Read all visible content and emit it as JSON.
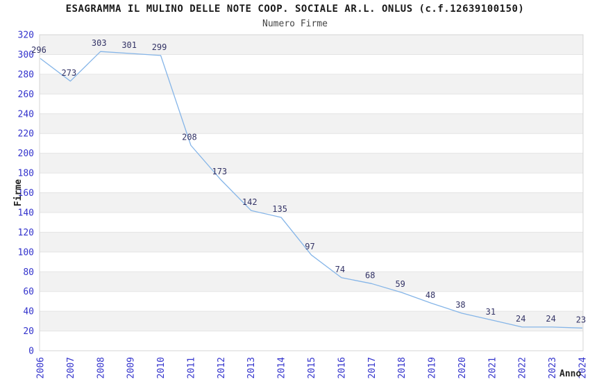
{
  "chart_data": {
    "type": "line",
    "title": "ESAGRAMMA IL MULINO DELLE NOTE COOP. SOCIALE AR.L. ONLUS (c.f.12639100150)",
    "subtitle": "Numero Firme",
    "xlabel": "Anno",
    "ylabel": "Firme",
    "x": [
      2006,
      2007,
      2008,
      2009,
      2010,
      2011,
      2012,
      2013,
      2014,
      2015,
      2016,
      2017,
      2018,
      2019,
      2020,
      2021,
      2022,
      2023,
      2024
    ],
    "values": [
      296,
      273,
      303,
      301,
      299,
      208,
      173,
      142,
      135,
      97,
      74,
      68,
      59,
      48,
      38,
      31,
      24,
      24,
      23
    ],
    "ylim": [
      0,
      320
    ],
    "ytick_step": 20,
    "grid": "horizontal-bands",
    "legend": "none",
    "colors": {
      "line": "#85b5e8",
      "tick_label": "#3333cc",
      "data_label": "#333366",
      "band": "#f2f2f2",
      "gridline": "#e4e4e4",
      "plot_border": "#d4d4d4",
      "axis_title": "#222222"
    }
  }
}
